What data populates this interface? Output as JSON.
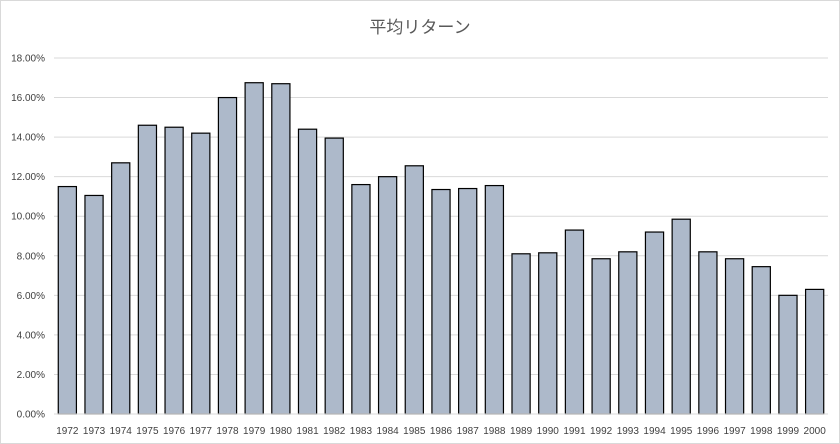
{
  "chart_data": {
    "type": "bar",
    "title": "平均リターン",
    "xlabel": "",
    "ylabel": "",
    "categories": [
      "1972",
      "1973",
      "1974",
      "1975",
      "1976",
      "1977",
      "1978",
      "1979",
      "1980",
      "1981",
      "1982",
      "1983",
      "1984",
      "1985",
      "1986",
      "1987",
      "1988",
      "1989",
      "1990",
      "1991",
      "1992",
      "1993",
      "1994",
      "1995",
      "1996",
      "1997",
      "1998",
      "1999",
      "2000"
    ],
    "values": [
      11.5,
      11.05,
      12.7,
      14.6,
      14.5,
      14.2,
      16.0,
      16.75,
      16.7,
      14.4,
      13.95,
      11.6,
      12.0,
      12.55,
      11.35,
      11.4,
      11.55,
      8.1,
      8.15,
      9.3,
      7.85,
      8.2,
      9.2,
      9.85,
      8.2,
      7.85,
      7.45,
      6.0,
      6.3
    ],
    "ylim": [
      0,
      18
    ],
    "yticks": [
      "0.00%",
      "2.00%",
      "4.00%",
      "6.00%",
      "8.00%",
      "10.00%",
      "12.00%",
      "14.00%",
      "16.00%",
      "18.00%"
    ],
    "grid": true,
    "legend": "none",
    "bar_color": "#adb9ca",
    "bar_edge_color": "#000000",
    "grid_color": "#d9d9d9"
  }
}
